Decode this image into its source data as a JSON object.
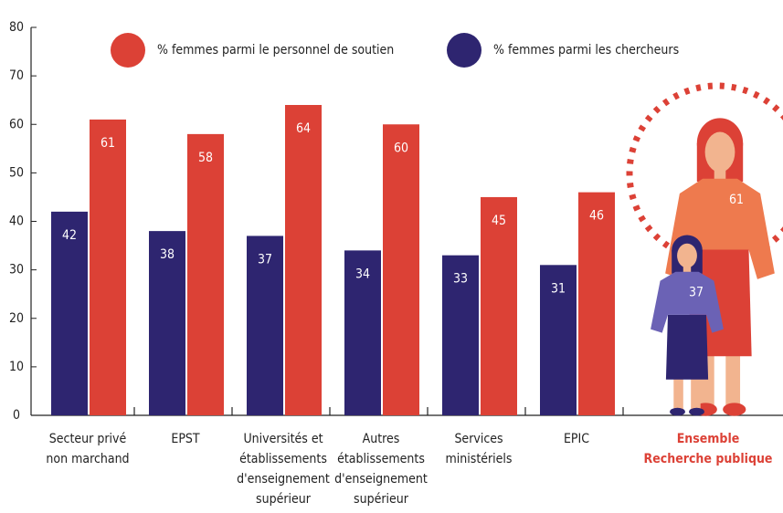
{
  "chart_data": {
    "type": "bar",
    "categories": [
      "Secteur privé\nnon marchand",
      "EPST",
      "Universités et\nétablissements\nd'enseignement\nsupérieur",
      "Autres\nétablissements\nd'enseignement\nsupérieur",
      "Services\nministériels",
      "EPIC",
      "Ensemble\nRecherche publique"
    ],
    "series": [
      {
        "name": "% femmes parmi les chercheurs",
        "color": "#2e2570",
        "values": [
          42,
          38,
          37,
          34,
          33,
          31,
          37
        ]
      },
      {
        "name": "% femmes parmi le personnel de soutien",
        "color": "#dc4136",
        "values": [
          61,
          58,
          64,
          60,
          45,
          46,
          61
        ]
      }
    ],
    "ylim": [
      0,
      80
    ],
    "yticks": [
      0,
      10,
      20,
      30,
      40,
      50,
      60,
      70,
      80
    ]
  }
}
